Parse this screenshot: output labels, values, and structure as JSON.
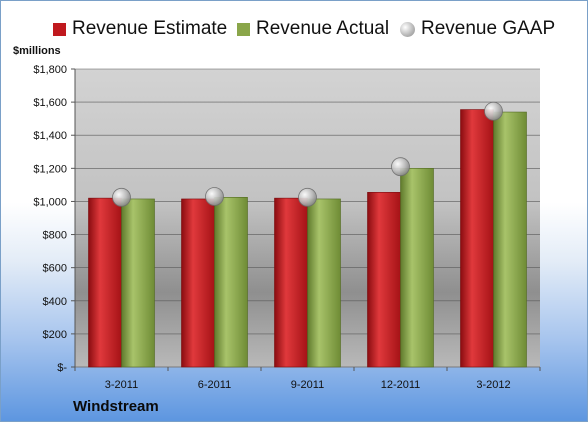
{
  "chart_data": {
    "type": "bar",
    "ylabel": "$millions",
    "categories": [
      "3-2011",
      "6-2011",
      "9-2011",
      "12-2011",
      "3-2012"
    ],
    "series": [
      {
        "name": "Revenue Estimate",
        "kind": "bar",
        "values": [
          1020,
          1015,
          1020,
          1055,
          1555
        ]
      },
      {
        "name": "Revenue Actual",
        "kind": "bar",
        "values": [
          1015,
          1025,
          1015,
          1200,
          1540
        ]
      },
      {
        "name": "Revenue GAAP",
        "kind": "marker",
        "values": [
          1025,
          1030,
          1025,
          1210,
          1545
        ]
      }
    ],
    "ylim": [
      0,
      1800
    ],
    "yticks": [
      0,
      200,
      400,
      600,
      800,
      1000,
      1200,
      1400,
      1600,
      1800
    ],
    "ytick_labels": [
      "$-",
      "$200",
      "$400",
      "$600",
      "$800",
      "$1,000",
      "$1,200",
      "$1,400",
      "$1,600",
      "$1,800"
    ],
    "grid": true,
    "legend_position": "top",
    "company": "Windstream"
  },
  "colors": {
    "estimate": "#c0191e",
    "actual": "#8aa64a",
    "gaap": "#c8c8c8"
  }
}
